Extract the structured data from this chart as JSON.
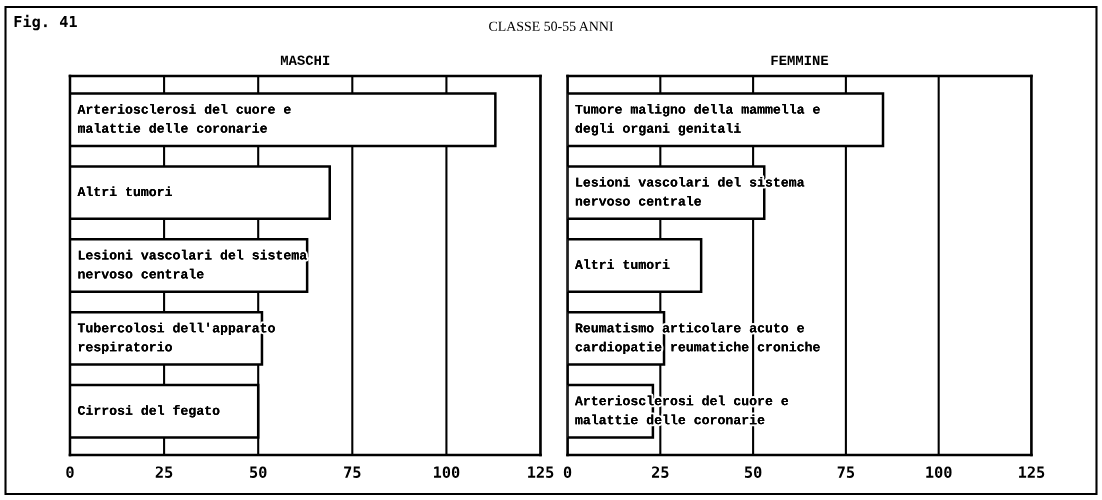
{
  "chart_data": [
    {
      "type": "bar",
      "orientation": "horizontal",
      "title": "MASCHI",
      "annotations": [
        "Fig. 41",
        "CLASSE 50-55 ANNI"
      ],
      "categories": [
        "Arteriosclerosi del cuore e\nmalattie delle coronarie",
        "Altri tumori",
        "Lesioni vascolari del sistema\nnervoso centrale",
        "Tubercolosi dell'apparato\nrespiratorio",
        "Cirrosi del fegato"
      ],
      "values": [
        113,
        69,
        63,
        51,
        50
      ],
      "color": "#ffffff",
      "xlim": [
        0,
        125
      ],
      "xticks": [
        0,
        25,
        50,
        75,
        100,
        125
      ],
      "grid": "x"
    },
    {
      "type": "bar",
      "orientation": "horizontal",
      "title": "FEMMINE",
      "categories": [
        "Tumore maligno della mammella e\ndegli organi genitali",
        "Lesioni vascolari del sistema\nnervoso centrale",
        "Altri tumori",
        "Reumatismo articolare acuto e\ncardiopatie reumatiche croniche",
        "Arteriosclerosi del cuore e\nmalattie delle coronarie"
      ],
      "values": [
        85,
        53,
        36,
        26,
        23
      ],
      "color": "#ffffff",
      "xlim": [
        0,
        125
      ],
      "xticks": [
        0,
        25,
        50,
        75,
        100,
        125
      ],
      "grid": "x"
    }
  ]
}
